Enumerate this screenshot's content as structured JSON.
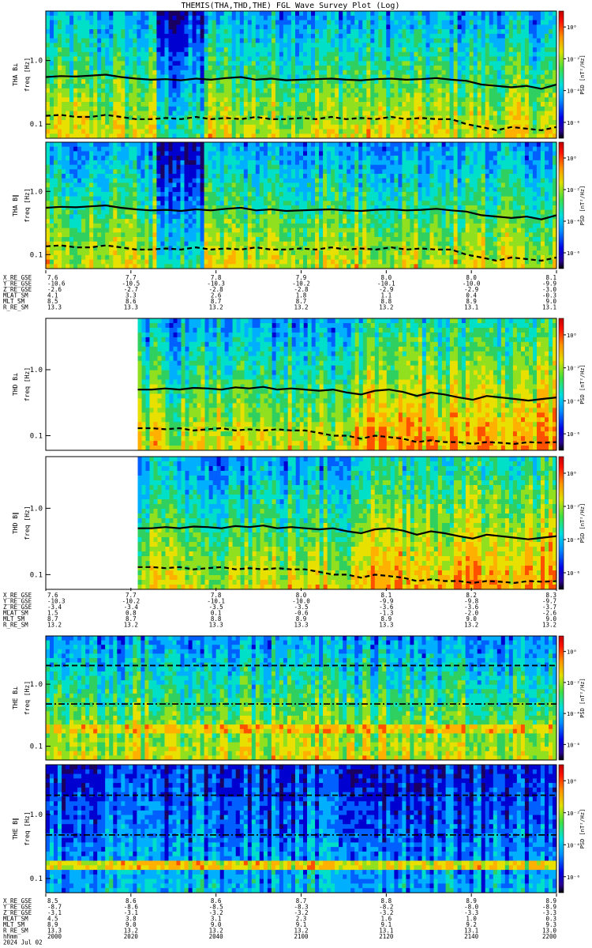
{
  "chart_data": {
    "type": "heatmap",
    "title": "THEMIS(THA,THD,THE) FGL Wave Survey Plot (Log)",
    "colorbar": {
      "label": "PSD [nT²/Hz]",
      "tick_labels": [
        "10⁰",
        "10⁻²",
        "10⁻⁴",
        "10⁻⁶"
      ],
      "tick_exponents": [
        0,
        -2,
        -4,
        -6
      ],
      "range_log10": [
        -7,
        1
      ]
    },
    "y_axis": {
      "label": "freq [Hz]",
      "scale": "log",
      "tick_labels": [
        "1.0",
        "0.1"
      ],
      "tick_values": [
        1.0,
        0.1
      ],
      "range": [
        0.06,
        6.0
      ]
    },
    "panels": [
      {
        "probe": "THA",
        "component": "B⊥",
        "ylabel": "THA B⊥",
        "start_fraction": 0.0,
        "overlay": "probe",
        "line_solid_hz": [
          0.55,
          0.57,
          0.56,
          0.58,
          0.6,
          0.55,
          0.52,
          0.5,
          0.51,
          0.49,
          0.52,
          0.5,
          0.53,
          0.55,
          0.5,
          0.52,
          0.49,
          0.5,
          0.51,
          0.52,
          0.5,
          0.49,
          0.51,
          0.52,
          0.5,
          0.51,
          0.53,
          0.5,
          0.48,
          0.42,
          0.4,
          0.38,
          0.4,
          0.36,
          0.42
        ],
        "line_dashed_hz": [
          0.135,
          0.14,
          0.13,
          0.13,
          0.14,
          0.13,
          0.12,
          0.12,
          0.125,
          0.12,
          0.13,
          0.12,
          0.125,
          0.12,
          0.13,
          0.12,
          0.12,
          0.125,
          0.12,
          0.13,
          0.12,
          0.125,
          0.12,
          0.13,
          0.12,
          0.125,
          0.12,
          0.12,
          0.1,
          0.09,
          0.08,
          0.09,
          0.085,
          0.08,
          0.09
        ]
      },
      {
        "probe": "THA",
        "component": "B∥",
        "ylabel": "THA B∥",
        "start_fraction": 0.0,
        "overlay": "probe",
        "line_solid_hz": [
          0.55,
          0.57,
          0.56,
          0.58,
          0.6,
          0.55,
          0.52,
          0.5,
          0.51,
          0.49,
          0.52,
          0.5,
          0.53,
          0.55,
          0.5,
          0.52,
          0.49,
          0.5,
          0.51,
          0.52,
          0.5,
          0.49,
          0.51,
          0.52,
          0.5,
          0.51,
          0.53,
          0.5,
          0.48,
          0.42,
          0.4,
          0.38,
          0.4,
          0.36,
          0.42
        ],
        "line_dashed_hz": [
          0.135,
          0.14,
          0.13,
          0.13,
          0.14,
          0.13,
          0.12,
          0.12,
          0.125,
          0.12,
          0.13,
          0.12,
          0.125,
          0.12,
          0.13,
          0.12,
          0.12,
          0.125,
          0.12,
          0.13,
          0.12,
          0.125,
          0.12,
          0.13,
          0.12,
          0.125,
          0.12,
          0.12,
          0.1,
          0.09,
          0.08,
          0.09,
          0.085,
          0.08,
          0.09
        ]
      },
      {
        "probe": "THD",
        "component": "B⊥",
        "ylabel": "THD B⊥",
        "start_fraction": 0.18,
        "overlay": "probe",
        "line_solid_hz": [
          0.5,
          0.5,
          0.52,
          0.5,
          0.53,
          0.52,
          0.5,
          0.54,
          0.52,
          0.55,
          0.5,
          0.52,
          0.5,
          0.48,
          0.5,
          0.45,
          0.42,
          0.48,
          0.5,
          0.46,
          0.4,
          0.45,
          0.42,
          0.38,
          0.35,
          0.4,
          0.38,
          0.36,
          0.34,
          0.36,
          0.38
        ],
        "line_dashed_hz": [
          0.13,
          0.13,
          0.125,
          0.13,
          0.12,
          0.125,
          0.13,
          0.12,
          0.125,
          0.12,
          0.125,
          0.12,
          0.12,
          0.11,
          0.1,
          0.1,
          0.09,
          0.1,
          0.095,
          0.09,
          0.08,
          0.085,
          0.08,
          0.08,
          0.075,
          0.08,
          0.078,
          0.075,
          0.08,
          0.078,
          0.08
        ]
      },
      {
        "probe": "THD",
        "component": "B∥",
        "ylabel": "THD B∥",
        "start_fraction": 0.18,
        "overlay": "probe",
        "line_solid_hz": [
          0.5,
          0.5,
          0.52,
          0.5,
          0.53,
          0.52,
          0.5,
          0.54,
          0.52,
          0.55,
          0.5,
          0.52,
          0.5,
          0.48,
          0.5,
          0.45,
          0.42,
          0.48,
          0.5,
          0.46,
          0.4,
          0.45,
          0.42,
          0.38,
          0.35,
          0.4,
          0.38,
          0.36,
          0.34,
          0.36,
          0.38
        ],
        "line_dashed_hz": [
          0.13,
          0.13,
          0.125,
          0.13,
          0.12,
          0.125,
          0.13,
          0.12,
          0.125,
          0.12,
          0.125,
          0.12,
          0.12,
          0.11,
          0.1,
          0.1,
          0.09,
          0.1,
          0.095,
          0.09,
          0.08,
          0.085,
          0.08,
          0.08,
          0.075,
          0.08,
          0.078,
          0.075,
          0.08,
          0.078,
          0.08
        ]
      },
      {
        "probe": "THE",
        "component": "B⊥",
        "ylabel": "THE B⊥",
        "start_fraction": 0.0,
        "overlay": "constant",
        "dashed_hz": 2.0,
        "dashdot_hz": 0.48
      },
      {
        "probe": "THE",
        "component": "B∥",
        "ylabel": "THE B∥",
        "start_fraction": 0.0,
        "overlay": "constant",
        "dashed_hz": 2.0,
        "dashdot_hz": 0.48
      }
    ],
    "ephemeris_blocks": [
      {
        "probe": "THA",
        "labels": [
          "X_RE_GSE",
          "Y_RE_GSE",
          "Z_RE_GSE",
          "MLAT_SM",
          "MLT_SM",
          "R_RE_SM"
        ],
        "values": [
          [
            "7.6",
            "7.7",
            "7.8",
            "7.9",
            "8.0",
            "8.0",
            "8.1"
          ],
          [
            "-10.6",
            "-10.5",
            "-10.3",
            "-10.2",
            "-10.1",
            "-10.0",
            "-9.9"
          ],
          [
            "-2.6",
            "-2.7",
            "-2.8",
            "-2.8",
            "-2.9",
            "-2.9",
            "-3.0"
          ],
          [
            "4.1",
            "3.3",
            "2.6",
            "1.8",
            "1.1",
            "0.4",
            "-0.3"
          ],
          [
            "8.5",
            "8.6",
            "8.7",
            "8.7",
            "8.8",
            "8.9",
            "9.0"
          ],
          [
            "13.3",
            "13.3",
            "13.2",
            "13.2",
            "13.2",
            "13.1",
            "13.1"
          ]
        ]
      },
      {
        "probe": "THD",
        "labels": [
          "X_RE_GSE",
          "Y_RE_GSE",
          "Z_RE_GSE",
          "MLAT_SM",
          "MLT_SM",
          "R_RE_SM"
        ],
        "values": [
          [
            "7.6",
            "7.7",
            "7.8",
            "8.0",
            "8.1",
            "8.2",
            "8.3"
          ],
          [
            "-10.3",
            "-10.2",
            "-10.1",
            "-10.0",
            "-9.9",
            "-9.8",
            "-9.7"
          ],
          [
            "-3.4",
            "-3.4",
            "-3.5",
            "-3.5",
            "-3.6",
            "-3.6",
            "-3.7"
          ],
          [
            "1.5",
            "0.8",
            "0.1",
            "-0.6",
            "-1.3",
            "-2.0",
            "-2.6"
          ],
          [
            "8.7",
            "8.7",
            "8.8",
            "8.9",
            "8.9",
            "9.0",
            "9.0"
          ],
          [
            "13.2",
            "13.2",
            "13.3",
            "13.3",
            "13.3",
            "13.2",
            "13.2"
          ]
        ]
      },
      {
        "probe": "THE",
        "labels": [
          "X_RE_GSE",
          "Y_RE_GSE",
          "Z_RE_GSE",
          "MLAT_SM",
          "MLT_SM",
          "R_RE_SM",
          "hhmm",
          "2024 Jul 02"
        ],
        "values": [
          [
            "8.5",
            "8.6",
            "8.6",
            "8.7",
            "8.8",
            "8.9",
            "8.9"
          ],
          [
            "-8.7",
            "-8.6",
            "-8.5",
            "-8.3",
            "-8.2",
            "-8.0",
            "-8.9"
          ],
          [
            "-3.1",
            "-3.1",
            "-3.2",
            "-3.2",
            "-3.2",
            "-3.3",
            "-3.3"
          ],
          [
            "4.5",
            "3.8",
            "3.1",
            "2.3",
            "1.6",
            "1.0",
            "0.3"
          ],
          [
            "8.9",
            "9.0",
            "9.0",
            "9.1",
            "9.1",
            "9.2",
            "9.3"
          ],
          [
            "13.3",
            "13.2",
            "13.2",
            "13.2",
            "13.1",
            "13.1",
            "13.0"
          ],
          [
            "2000",
            "2020",
            "2040",
            "2100",
            "2120",
            "2140",
            "2200"
          ],
          []
        ]
      }
    ]
  }
}
